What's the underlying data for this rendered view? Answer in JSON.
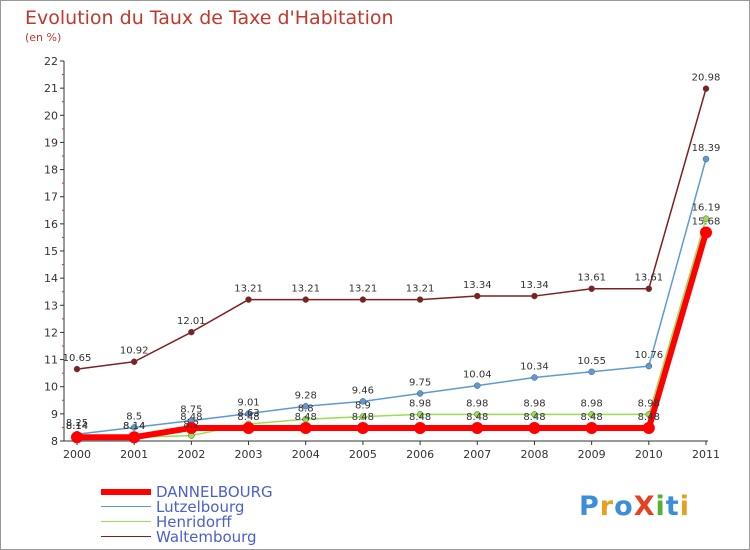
{
  "title": "Evolution du Taux de Taxe d'Habitation",
  "subtitle": "(en %)",
  "logo": {
    "text": "ProXiti",
    "letters": [
      "P",
      "r",
      "o",
      "X",
      "i",
      "t",
      "i"
    ],
    "colors": [
      "#3a8fd8",
      "#e8a020",
      "#3a8fd8",
      "#e84020",
      "#55b030",
      "#3a8fd8",
      "#e8a020"
    ]
  },
  "chart_data": {
    "type": "line",
    "title": "Evolution du Taux de Taxe d'Habitation",
    "ylabel": "(en %)",
    "xlabel": "",
    "ylim": [
      8,
      22
    ],
    "yticks": [
      "8",
      "9",
      "10",
      "11",
      "12",
      "13",
      "14",
      "15",
      "16",
      "17",
      "18",
      "19",
      "20",
      "21",
      "22"
    ],
    "grid": false,
    "legend_position": "bottom-left",
    "categories": [
      "2000",
      "2001",
      "2002",
      "2003",
      "2004",
      "2005",
      "2006",
      "2007",
      "2008",
      "2009",
      "2010",
      "2011"
    ],
    "series": [
      {
        "name": "DANNELBOURG",
        "color": "#ff0000",
        "values": [
          8.14,
          8.14,
          8.48,
          8.48,
          8.48,
          8.48,
          8.48,
          8.48,
          8.48,
          8.48,
          8.48,
          15.68
        ],
        "labels": [
          "8.14",
          "8.14",
          "8.48",
          "8.48",
          "8.48",
          "8.48",
          "8.48",
          "8.48",
          "8.48",
          "8.48",
          "8.48",
          "15.68"
        ]
      },
      {
        "name": "Lutzelbourg",
        "color": "#5b9bd5",
        "values": [
          8.25,
          8.5,
          8.75,
          9.01,
          9.28,
          9.46,
          9.75,
          10.04,
          10.34,
          10.55,
          10.76,
          18.39
        ],
        "labels": [
          "8.25",
          "8.5",
          "8.75",
          "9.01",
          "9.28",
          "9.46",
          "9.75",
          "10.04",
          "10.34",
          "10.55",
          "10.76",
          "18.39"
        ]
      },
      {
        "name": "Henridorff",
        "color": "#99dd55",
        "values": [
          8.14,
          8.14,
          8.2,
          8.63,
          8.8,
          8.9,
          8.98,
          8.98,
          8.98,
          8.98,
          8.98,
          16.19
        ],
        "labels": [
          "8.14",
          "8.14",
          "8.2",
          "8.63",
          "8.8",
          "8.9",
          "8.98",
          "8.98",
          "8.98",
          "8.98",
          "8.98",
          "16.19"
        ]
      },
      {
        "name": "Waltembourg",
        "color": "#7f1f1f",
        "values": [
          10.65,
          10.92,
          12.01,
          13.21,
          13.21,
          13.21,
          13.21,
          13.34,
          13.34,
          13.61,
          13.61,
          20.98
        ],
        "labels": [
          "10.65",
          "10.92",
          "12.01",
          "13.21",
          "13.21",
          "13.21",
          "13.21",
          "13.34",
          "13.34",
          "13.61",
          "13.61",
          "20.98"
        ]
      }
    ]
  }
}
